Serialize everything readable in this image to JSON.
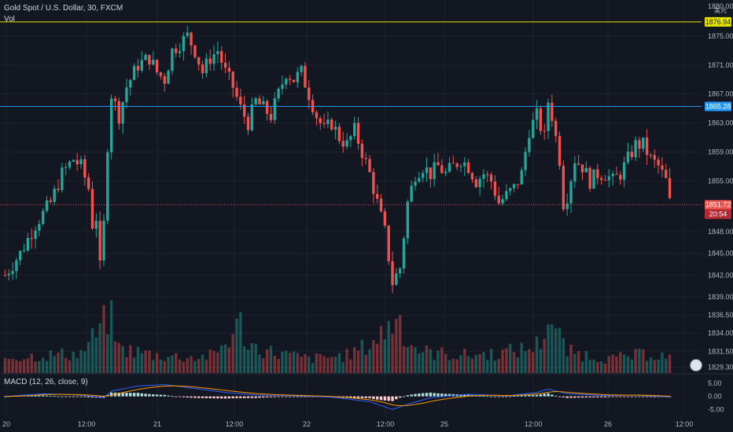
{
  "header": {
    "symbol": "Gold Spot / U.S. Dollar, 30, FXCM",
    "volume_label": "Vol",
    "macd_label": "MACD (12, 26, close, 9)",
    "currency_badge": "美元"
  },
  "colors": {
    "background": "#131722",
    "up": "#26a69a",
    "down": "#ef5350",
    "yellow_line": "#e6e600",
    "blue_line": "#2196f3",
    "macd_line": "#2962ff",
    "signal_line": "#ff9800"
  },
  "chart_data": {
    "type": "candlestick",
    "y_axis": {
      "ticks": [
        "1875.00",
        "1871.00",
        "1867.00",
        "1863.00",
        "1859.00",
        "1855.00",
        "1848.00",
        "1845.00",
        "1842.00",
        "1839.00",
        "1836.50",
        "1834.00",
        "1831.50",
        "1829.30"
      ],
      "tick_values": [
        1875.0,
        1871.0,
        1867.0,
        1863.0,
        1859.0,
        1855.0,
        1848.0,
        1845.0,
        1842.0,
        1839.0,
        1836.5,
        1834.0,
        1831.5,
        1829.3
      ],
      "top_partial": "1880.00",
      "ylim": [
        1828.5,
        1877.8
      ]
    },
    "x_axis": {
      "ticks": [
        "20",
        "12:00",
        "21",
        "12:00",
        "22",
        "12:00",
        "25",
        "12:00",
        "26",
        "12:00"
      ]
    },
    "price_lines": [
      {
        "name": "yellow-level",
        "value": 1876.94,
        "label": "1876.94"
      },
      {
        "name": "blue-level",
        "value": 1865.28,
        "label": "1865.28"
      },
      {
        "name": "last-price",
        "value": 1851.72,
        "label": "1851.72"
      }
    ],
    "countdown": "20:54",
    "macd": {
      "ticks": [
        "5.00",
        "0.00",
        "-5.00"
      ],
      "tick_values": [
        5,
        0,
        -5
      ],
      "ylim": [
        -7,
        8
      ]
    },
    "anchors": [
      [
        0,
        1842
      ],
      [
        4,
        1845
      ],
      [
        8,
        1849
      ],
      [
        12,
        1852
      ],
      [
        15,
        1856
      ],
      [
        18,
        1858
      ],
      [
        20,
        1857
      ],
      [
        22,
        1854
      ],
      [
        23,
        1849
      ],
      [
        24,
        1850
      ],
      [
        25,
        1843
      ],
      [
        26,
        1849
      ],
      [
        27,
        1860
      ],
      [
        28,
        1867
      ],
      [
        30,
        1864
      ],
      [
        32,
        1868
      ],
      [
        35,
        1871
      ],
      [
        38,
        1872
      ],
      [
        40,
        1870
      ],
      [
        42,
        1869
      ],
      [
        44,
        1873
      ],
      [
        46,
        1874
      ],
      [
        48,
        1875
      ],
      [
        50,
        1873
      ],
      [
        52,
        1870
      ],
      [
        54,
        1872
      ],
      [
        56,
        1873
      ],
      [
        58,
        1870
      ],
      [
        60,
        1868
      ],
      [
        62,
        1865
      ],
      [
        64,
        1863
      ],
      [
        66,
        1866
      ],
      [
        68,
        1865
      ],
      [
        70,
        1864
      ],
      [
        72,
        1867
      ],
      [
        74,
        1870
      ],
      [
        76,
        1869
      ],
      [
        78,
        1870
      ],
      [
        80,
        1867
      ],
      [
        82,
        1864
      ],
      [
        84,
        1862
      ],
      [
        86,
        1863
      ],
      [
        88,
        1861
      ],
      [
        90,
        1860
      ],
      [
        92,
        1862
      ],
      [
        94,
        1859
      ],
      [
        96,
        1856
      ],
      [
        98,
        1852
      ],
      [
        100,
        1848
      ],
      [
        102,
        1841
      ],
      [
        104,
        1843
      ],
      [
        106,
        1852
      ],
      [
        108,
        1856
      ],
      [
        110,
        1857
      ],
      [
        112,
        1856
      ],
      [
        114,
        1857
      ],
      [
        116,
        1856
      ],
      [
        118,
        1857
      ],
      [
        120,
        1858
      ],
      [
        122,
        1857
      ],
      [
        124,
        1855
      ],
      [
        126,
        1856
      ],
      [
        128,
        1855
      ],
      [
        130,
        1852
      ],
      [
        132,
        1853
      ],
      [
        134,
        1854
      ],
      [
        136,
        1856
      ],
      [
        138,
        1862
      ],
      [
        140,
        1864
      ],
      [
        142,
        1861
      ],
      [
        143,
        1866
      ],
      [
        144,
        1864
      ],
      [
        146,
        1858
      ],
      [
        147,
        1852
      ],
      [
        148,
        1853
      ],
      [
        150,
        1858
      ],
      [
        152,
        1857
      ],
      [
        154,
        1855
      ],
      [
        156,
        1856
      ],
      [
        158,
        1856
      ],
      [
        160,
        1855
      ],
      [
        162,
        1856
      ],
      [
        164,
        1858
      ],
      [
        166,
        1860
      ],
      [
        168,
        1860
      ],
      [
        170,
        1858
      ],
      [
        172,
        1857
      ],
      [
        174,
        1855
      ],
      [
        175,
        1852
      ]
    ],
    "volume_anchors": [
      [
        0,
        22
      ],
      [
        10,
        25
      ],
      [
        20,
        28
      ],
      [
        24,
        55
      ],
      [
        25,
        60
      ],
      [
        27,
        80
      ],
      [
        28,
        75
      ],
      [
        30,
        35
      ],
      [
        40,
        25
      ],
      [
        50,
        22
      ],
      [
        55,
        25
      ],
      [
        60,
        55
      ],
      [
        62,
        70
      ],
      [
        64,
        40
      ],
      [
        70,
        30
      ],
      [
        80,
        20
      ],
      [
        90,
        25
      ],
      [
        96,
        40
      ],
      [
        100,
        60
      ],
      [
        102,
        70
      ],
      [
        103,
        85
      ],
      [
        104,
        75
      ],
      [
        106,
        45
      ],
      [
        110,
        30
      ],
      [
        120,
        25
      ],
      [
        130,
        28
      ],
      [
        138,
        35
      ],
      [
        140,
        40
      ],
      [
        142,
        55
      ],
      [
        143,
        85
      ],
      [
        144,
        70
      ],
      [
        146,
        50
      ],
      [
        148,
        30
      ],
      [
        160,
        20
      ],
      [
        170,
        28
      ],
      [
        175,
        22
      ]
    ],
    "macd_anchors": [
      [
        0,
        0
      ],
      [
        10,
        1
      ],
      [
        20,
        0.5
      ],
      [
        26,
        -0.5
      ],
      [
        28,
        2
      ],
      [
        35,
        4
      ],
      [
        42,
        4.5
      ],
      [
        50,
        3
      ],
      [
        58,
        1.5
      ],
      [
        66,
        0.5
      ],
      [
        76,
        0.3
      ],
      [
        86,
        -0.3
      ],
      [
        96,
        -2
      ],
      [
        102,
        -5
      ],
      [
        106,
        -3
      ],
      [
        112,
        -0.5
      ],
      [
        122,
        0.8
      ],
      [
        132,
        0.2
      ],
      [
        140,
        1.5
      ],
      [
        143,
        2.8
      ],
      [
        148,
        1
      ],
      [
        158,
        0.3
      ],
      [
        166,
        0.5
      ],
      [
        175,
        -0.2
      ]
    ]
  }
}
